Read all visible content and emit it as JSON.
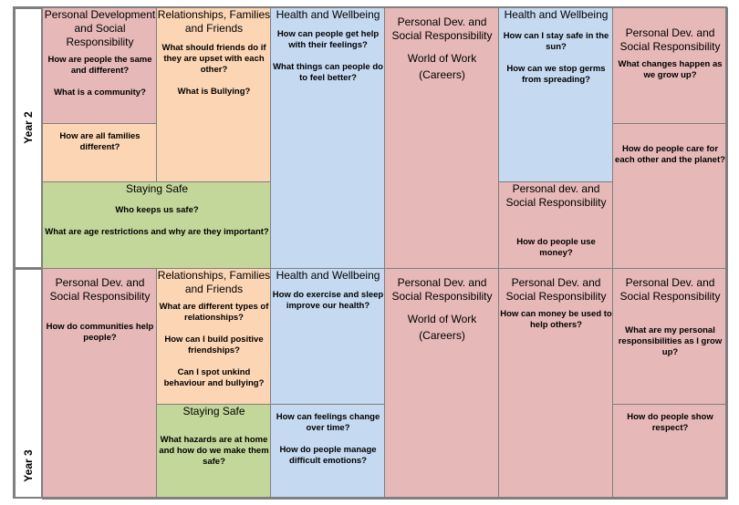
{
  "colors": {
    "pink": "#e6b8b7",
    "orange": "#fcd5b4",
    "blue": "#c5d9f1",
    "green": "#c4d79b",
    "border": "#7f7f7f"
  },
  "rows": [
    {
      "label": "Year 2",
      "cells": [
        {
          "color": "pink",
          "title": "Personal Development and Social Responsibility",
          "questions": [
            "How are people the same and different?",
            "What is a community?"
          ]
        },
        {
          "color": "orange",
          "title": "",
          "questions": [
            "How are all families different?"
          ]
        },
        {
          "color": "orange",
          "title": "Relationships, Families and Friends",
          "questions": [
            "What should friends do if they are upset with each other?",
            "What is Bullying?"
          ]
        },
        {
          "color": "green",
          "title": "Staying Safe",
          "questions": [
            "Who keeps us safe?",
            "What are age restrictions and why are they important?"
          ]
        },
        {
          "color": "blue",
          "title": "Health and Wellbeing",
          "questions": [
            "How can people get help with their feelings?",
            "What things can people do to feel better?"
          ]
        },
        {
          "color": "pink",
          "title": "Personal Dev. and Social Responsibility",
          "subtitle": "World of Work (Careers)",
          "questions": []
        },
        {
          "color": "blue",
          "title": "Health and Wellbeing",
          "questions": [
            "How can I stay safe in the sun?",
            "How can we stop germs from spreading?"
          ]
        },
        {
          "color": "pink",
          "title": "Personal dev. and Social Responsibility",
          "questions": [
            "How do people use money?"
          ]
        },
        {
          "color": "pink",
          "title": "Personal Dev. and Social Responsibility",
          "questions": [
            "What changes happen as we grow up?"
          ]
        },
        {
          "color": "pink",
          "title": "",
          "questions": [
            "How do people care for each other and the planet?"
          ]
        }
      ]
    },
    {
      "label": "Year 3",
      "cells": [
        {
          "color": "pink",
          "title": "Personal Dev. and Social Responsibility",
          "questions": [
            "How do communities help people?"
          ]
        },
        {
          "color": "orange",
          "title": "Relationships, Families and Friends",
          "questions": [
            "What are different types of relationships?",
            "How can I build positive friendships?",
            "Can I spot unkind behaviour and bullying?"
          ]
        },
        {
          "color": "green",
          "title": "Staying Safe",
          "questions": [
            "What hazards are at home and how do we make them safe?"
          ]
        },
        {
          "color": "blue",
          "title": "Health and Wellbeing",
          "questions": [
            "How do exercise and sleep improve our health?"
          ]
        },
        {
          "color": "blue",
          "title": "",
          "questions": [
            "How can feelings change over time?",
            "How do people manage difficult emotions?"
          ]
        },
        {
          "color": "pink",
          "title": "Personal Dev. and Social Responsibility",
          "subtitle": "World of Work (Careers)",
          "questions": []
        },
        {
          "color": "pink",
          "title": "Personal Dev. and Social Responsibility",
          "questions": [
            "How can money be used to help others?"
          ]
        },
        {
          "color": "pink",
          "title": "Personal Dev. and Social Responsibility",
          "questions": [
            "What are my personal responsibilities as I grow up?"
          ]
        },
        {
          "color": "pink",
          "title": "",
          "questions": [
            "How do people show respect?"
          ]
        }
      ]
    }
  ]
}
